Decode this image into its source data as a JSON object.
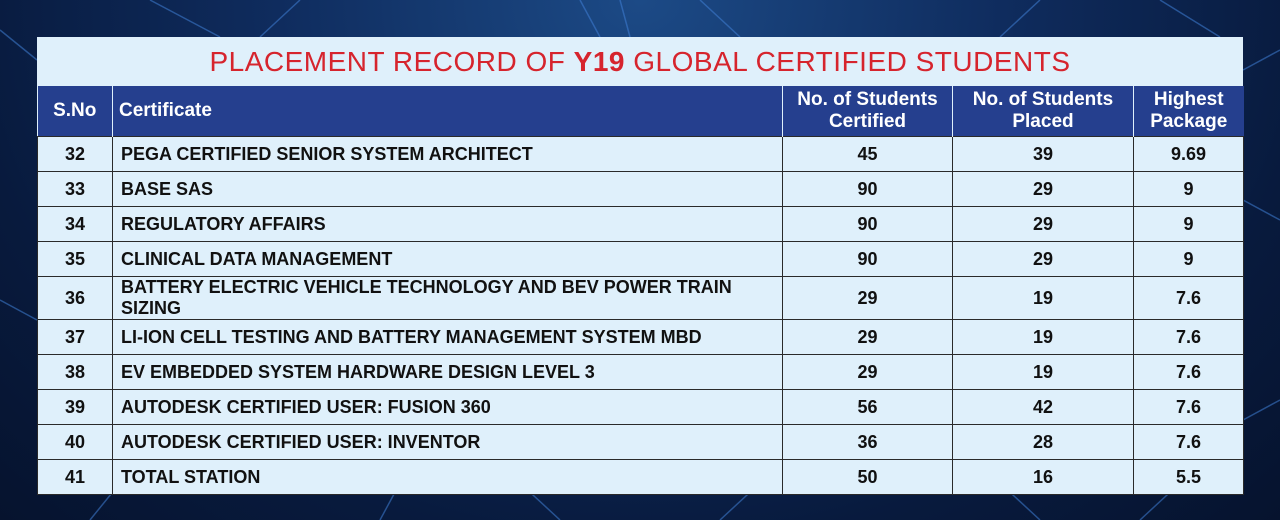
{
  "title": {
    "prefix": "PLACEMENT RECORD OF ",
    "highlight": "Y19",
    "suffix": " GLOBAL CERTIFIED STUDENTS"
  },
  "columns": {
    "sno": "S.No",
    "certificate": "Certificate",
    "certified_line1": "No. of Students",
    "certified_line2": "Certified",
    "placed_line1": "No. of Students",
    "placed_line2": "Placed",
    "package_line1": "Highest",
    "package_line2": "Package"
  },
  "rows": [
    {
      "sno": "32",
      "certificate": "PEGA CERTIFIED SENIOR SYSTEM ARCHITECT",
      "certified": "45",
      "placed": "39",
      "package": "9.69"
    },
    {
      "sno": "33",
      "certificate": "BASE SAS",
      "certified": "90",
      "placed": "29",
      "package": "9"
    },
    {
      "sno": "34",
      "certificate": "REGULATORY AFFAIRS",
      "certified": "90",
      "placed": "29",
      "package": "9"
    },
    {
      "sno": "35",
      "certificate": "CLINICAL DATA MANAGEMENT",
      "certified": "90",
      "placed": "29",
      "package": "9"
    },
    {
      "sno": "36",
      "certificate": "BATTERY ELECTRIC VEHICLE TECHNOLOGY AND BEV POWER TRAIN SIZING",
      "certified": "29",
      "placed": "19",
      "package": "7.6"
    },
    {
      "sno": "37",
      "certificate": "LI-ION CELL TESTING AND BATTERY MANAGEMENT SYSTEM MBD",
      "certified": "29",
      "placed": "19",
      "package": "7.6"
    },
    {
      "sno": "38",
      "certificate": "EV EMBEDDED SYSTEM HARDWARE DESIGN LEVEL 3",
      "certified": "29",
      "placed": "19",
      "package": "7.6"
    },
    {
      "sno": "39",
      "certificate": "AUTODESK CERTIFIED USER: FUSION 360",
      "certified": "56",
      "placed": "42",
      "package": "7.6"
    },
    {
      "sno": "40",
      "certificate": "AUTODESK CERTIFIED USER: INVENTOR",
      "certified": "36",
      "placed": "28",
      "package": "7.6"
    },
    {
      "sno": "41",
      "certificate": "TOTAL STATION",
      "certified": "50",
      "placed": "16",
      "package": "5.5"
    }
  ],
  "colors": {
    "title_red": "#d6242d",
    "header_blue": "#253f8e",
    "panel_bg": "#dff0fb",
    "page_bg": "#0f2c5e"
  }
}
